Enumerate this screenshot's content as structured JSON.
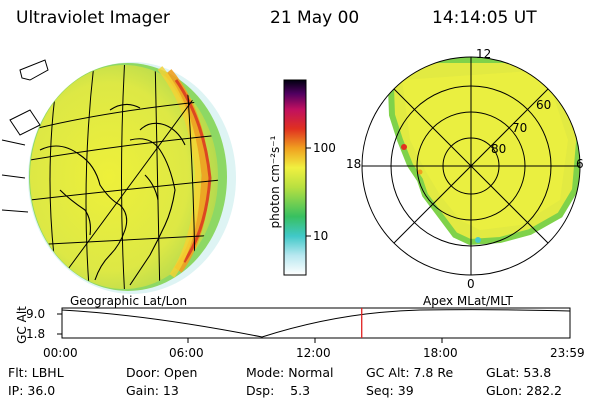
{
  "header": {
    "title": "Ultraviolet Imager",
    "date": "21 May 00",
    "time": "14:14:05 UT"
  },
  "colorbar": {
    "label": "photon cm⁻²s⁻¹",
    "ticks": [
      "100",
      "10"
    ]
  },
  "polar": {
    "mlt_labels": [
      "12",
      "18",
      "6",
      "0"
    ],
    "lat_labels": [
      "60",
      "70",
      "80"
    ]
  },
  "timeline": {
    "left_label": "Geographic Lat/Lon",
    "right_label": "Apex MLat/MLT",
    "axis_title": "GC Alt",
    "y_ticks": [
      "9.0",
      "1.8"
    ],
    "x_ticks": [
      "00:00",
      "06:00",
      "12:00",
      "18:00",
      "23:59"
    ],
    "current_time_fraction": 0.59
  },
  "info": {
    "row1": [
      {
        "text": "Flt: LBHL"
      },
      {
        "text": "Door: Open"
      },
      {
        "text": "Mode: Normal"
      },
      {
        "text": "GC Alt: 7.8 Re"
      },
      {
        "text": "GLat:  53.8"
      }
    ],
    "row2": [
      {
        "text": "IP: 36.0"
      },
      {
        "text": "Gain: 13"
      },
      {
        "text": "Dsp:    5.3"
      },
      {
        "text": "Seq: 39"
      },
      {
        "text": "GLon: 282.2"
      }
    ]
  },
  "colors": {
    "disk": "#d9e84a",
    "disk_core": "#e6ee3c",
    "aurora_orange": "#f0a020",
    "aurora_red": "#d83020",
    "limb_green": "#7fd24a",
    "limb_cyan": "#47c8c8",
    "grid": "#000000",
    "marker": "#e02020"
  }
}
